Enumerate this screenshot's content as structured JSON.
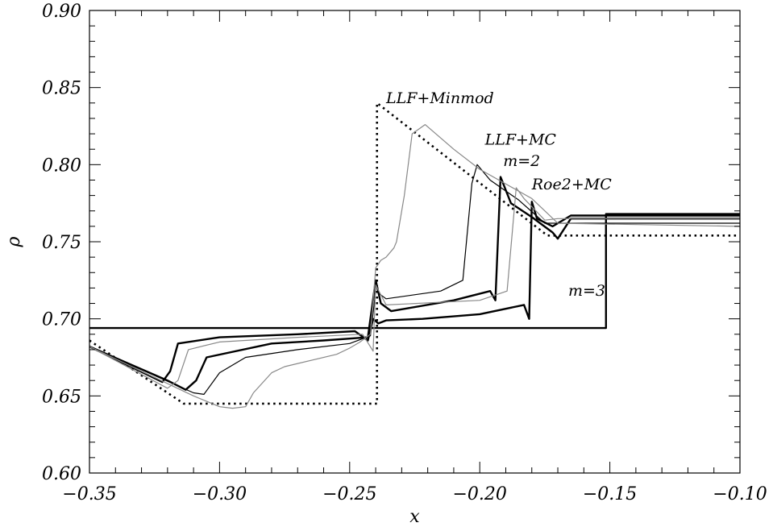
{
  "chart_data": {
    "type": "line",
    "title": "",
    "xlabel": "x",
    "ylabel": "ρ",
    "xlim": [
      -0.35,
      -0.1
    ],
    "ylim": [
      0.6,
      0.9
    ],
    "xticks": [
      -0.35,
      -0.3,
      -0.25,
      -0.2,
      -0.15,
      -0.1
    ],
    "xtick_labels": [
      "−0.35",
      "−0.30",
      "−0.25",
      "−0.20",
      "−0.15",
      "−0.10"
    ],
    "yticks": [
      0.6,
      0.65,
      0.7,
      0.75,
      0.8,
      0.85,
      0.9
    ],
    "ytick_labels": [
      "0.60",
      "0.65",
      "0.70",
      "0.75",
      "0.80",
      "0.85",
      "0.90"
    ],
    "grid": false,
    "legend": "none",
    "series": [
      {
        "style": "dotted",
        "color": "#000000",
        "x": [
          -0.35,
          -0.3138,
          -0.2405,
          -0.2405,
          -0.2395,
          -0.2395,
          -0.174,
          -0.1
        ],
        "y": [
          0.686,
          0.645,
          0.645,
          0.645,
          0.645,
          0.84,
          0.754,
          0.754
        ]
      },
      {
        "style": "thick-solid",
        "color": "#000000",
        "x": [
          -0.35,
          -0.35,
          -0.1515,
          -0.1515,
          -0.1
        ],
        "y": [
          0.694,
          0.694,
          0.694,
          0.768,
          0.768
        ]
      },
      {
        "style": "thick-solid",
        "color": "#000000",
        "x": [
          -0.35,
          -0.322,
          -0.319,
          -0.316,
          -0.3,
          -0.27,
          -0.248,
          -0.243,
          -0.241,
          -0.239,
          -0.236,
          -0.222,
          -0.2,
          -0.183,
          -0.181,
          -0.18,
          -0.178,
          -0.172,
          -0.165,
          -0.1
        ],
        "y": [
          0.682,
          0.659,
          0.666,
          0.684,
          0.688,
          0.69,
          0.692,
          0.686,
          0.7,
          0.697,
          0.699,
          0.7,
          0.703,
          0.709,
          0.7,
          0.776,
          0.765,
          0.76,
          0.767,
          0.767
        ]
      },
      {
        "style": "thick-solid",
        "color": "#000000",
        "x": [
          -0.35,
          -0.32,
          -0.313,
          -0.309,
          -0.305,
          -0.28,
          -0.26,
          -0.243,
          -0.24,
          -0.238,
          -0.234,
          -0.21,
          -0.196,
          -0.194,
          -0.192,
          -0.188,
          -0.18,
          -0.172,
          -0.17,
          -0.165,
          -0.1
        ],
        "y": [
          0.682,
          0.66,
          0.654,
          0.66,
          0.675,
          0.684,
          0.686,
          0.688,
          0.725,
          0.71,
          0.705,
          0.712,
          0.718,
          0.712,
          0.792,
          0.775,
          0.766,
          0.756,
          0.752,
          0.765,
          0.765
        ]
      },
      {
        "style": "thin-solid",
        "color": "#000000",
        "x": [
          -0.35,
          -0.31,
          -0.306,
          -0.3,
          -0.29,
          -0.27,
          -0.25,
          -0.242,
          -0.24,
          -0.236,
          -0.215,
          -0.2065,
          -0.203,
          -0.201,
          -0.196,
          -0.185,
          -0.175,
          -0.17,
          -0.1
        ],
        "y": [
          0.682,
          0.652,
          0.651,
          0.665,
          0.675,
          0.68,
          0.684,
          0.689,
          0.718,
          0.713,
          0.718,
          0.725,
          0.788,
          0.8,
          0.79,
          0.777,
          0.762,
          0.762,
          0.762
        ]
      },
      {
        "style": "thin-solid",
        "color": "#888888",
        "x": [
          -0.35,
          -0.32,
          -0.316,
          -0.312,
          -0.3,
          -0.27,
          -0.245,
          -0.241,
          -0.24,
          -0.236,
          -0.2,
          -0.1895,
          -0.186,
          -0.183,
          -0.175,
          -0.17,
          -0.1
        ],
        "y": [
          0.682,
          0.655,
          0.66,
          0.68,
          0.685,
          0.688,
          0.69,
          0.679,
          0.722,
          0.709,
          0.712,
          0.718,
          0.785,
          0.778,
          0.764,
          0.765,
          0.765
        ]
      },
      {
        "style": "thin-solid",
        "color": "#888888",
        "x": [
          -0.35,
          -0.31,
          -0.3,
          -0.295,
          -0.29,
          -0.287,
          -0.28,
          -0.275,
          -0.255,
          -0.25,
          -0.246,
          -0.242,
          -0.24,
          -0.238,
          -0.236,
          -0.233,
          -0.232,
          -0.229,
          -0.226,
          -0.221,
          -0.21,
          -0.2,
          -0.18,
          -0.17,
          -0.1
        ],
        "y": [
          0.682,
          0.65,
          0.643,
          0.642,
          0.643,
          0.652,
          0.665,
          0.669,
          0.677,
          0.681,
          0.685,
          0.69,
          0.733,
          0.738,
          0.74,
          0.746,
          0.75,
          0.78,
          0.82,
          0.826,
          0.81,
          0.797,
          0.778,
          0.762,
          0.76
        ]
      }
    ],
    "annotations": [
      {
        "text": "LLF+Minmod",
        "x": -0.236,
        "y": 0.84
      },
      {
        "text": "LLF+MC",
        "x": -0.198,
        "y": 0.813
      },
      {
        "text": "m=2",
        "x": -0.191,
        "y": 0.799
      },
      {
        "text": "Roe2+MC",
        "x": -0.18,
        "y": 0.784
      },
      {
        "text": "m=3",
        "x": -0.166,
        "y": 0.715
      }
    ]
  }
}
